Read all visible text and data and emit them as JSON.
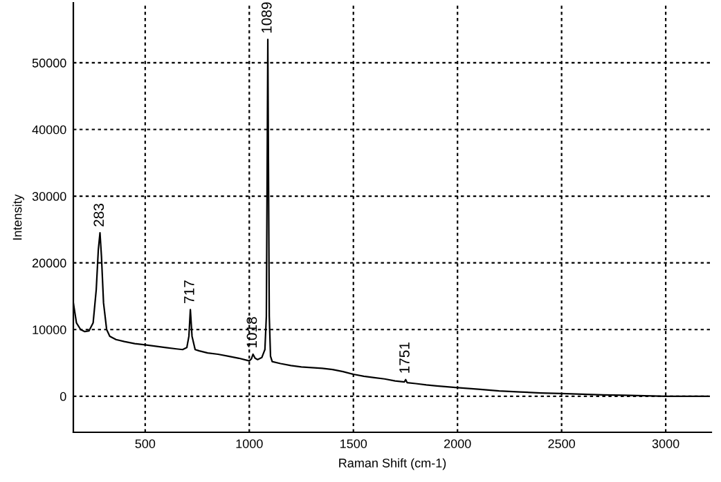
{
  "chart_data": {
    "type": "line",
    "xlabel": "Raman Shift (cm-1)",
    "ylabel": "Intensity",
    "x": [
      155,
      170,
      190,
      210,
      230,
      250,
      265,
      275,
      283,
      290,
      300,
      315,
      330,
      360,
      400,
      450,
      500,
      550,
      600,
      650,
      680,
      700,
      710,
      717,
      725,
      740,
      760,
      800,
      850,
      900,
      950,
      1000,
      1010,
      1018,
      1028,
      1040,
      1060,
      1075,
      1082,
      1086,
      1089,
      1092,
      1096,
      1102,
      1110,
      1150,
      1200,
      1250,
      1300,
      1350,
      1400,
      1450,
      1500,
      1550,
      1600,
      1650,
      1700,
      1745,
      1751,
      1758,
      1800,
      1850,
      1900,
      2000,
      2100,
      2200,
      2300,
      2400,
      2500,
      2600,
      2700,
      2800,
      2900,
      3000,
      3100,
      3200
    ],
    "series": [
      {
        "color": "#000000",
        "values": [
          14000,
          11000,
          10000,
          9700,
          9800,
          11000,
          16000,
          22000,
          24500,
          21000,
          14000,
          10000,
          9000,
          8500,
          8200,
          7900,
          7700,
          7500,
          7300,
          7100,
          7000,
          7300,
          9000,
          13000,
          9000,
          7000,
          6800,
          6500,
          6300,
          6000,
          5700,
          5300,
          5600,
          6300,
          5700,
          5500,
          5800,
          7000,
          12000,
          35000,
          53500,
          35000,
          12000,
          6000,
          5200,
          4900,
          4600,
          4400,
          4300,
          4200,
          4000,
          3700,
          3300,
          3000,
          2800,
          2600,
          2300,
          2150,
          2500,
          2050,
          1900,
          1700,
          1550,
          1300,
          1050,
          800,
          650,
          500,
          400,
          300,
          200,
          150,
          80,
          0,
          0,
          0
        ]
      }
    ],
    "annotations": [
      {
        "text": "283",
        "x": 283,
        "y": 24500
      },
      {
        "text": "717",
        "x": 717,
        "y": 13000
      },
      {
        "text": "1018",
        "x": 1018,
        "y": 6300
      },
      {
        "text": "1089",
        "x": 1089,
        "y": 53500
      },
      {
        "text": "1751",
        "x": 1751,
        "y": 2500
      }
    ],
    "xlim": [
      155,
      3219
    ],
    "ylim": [
      -5400,
      59000
    ],
    "xticks": [
      500,
      1000,
      1500,
      2000,
      2500,
      3000
    ],
    "yticks": [
      0,
      10000,
      20000,
      30000,
      40000,
      50000
    ],
    "grid": true,
    "marker": "none",
    "line_style": "solid"
  }
}
